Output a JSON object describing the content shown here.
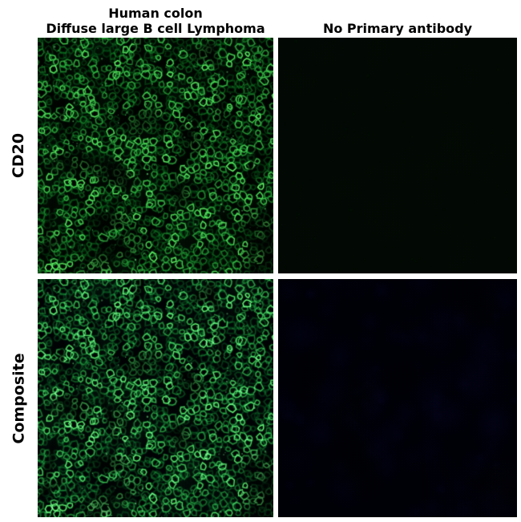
{
  "headers": {
    "left_line1": "Human colon",
    "left_line2": "Diffuse large B cell Lymphoma",
    "right": "No Primary antibody"
  },
  "row_labels": {
    "top": "CD20",
    "bottom": "Composite"
  },
  "colors": {
    "figure_background": "#ffffff",
    "text": "#000000",
    "panel_background": "#000300",
    "green_channel": "#1ed455",
    "green_bright": "#7aff8c",
    "blue_channel": "#2b2fe0",
    "blue_bright": "#5a64ff",
    "no_primary_tint": "#020803"
  },
  "panels": [
    {
      "id": "cd20-stained",
      "row": "CD20",
      "column": "stained",
      "kind": "membranes",
      "seed": 101
    },
    {
      "id": "cd20-no-primary",
      "row": "CD20",
      "column": "no-primary",
      "kind": "blank",
      "seed": 77
    },
    {
      "id": "composite-stained",
      "row": "Composite",
      "column": "stained",
      "kind": "membranes-nuclei",
      "seed": 101,
      "nuclei_seed": 202,
      "nuclei_count": 500
    },
    {
      "id": "composite-no-primary",
      "row": "Composite",
      "column": "no-primary",
      "kind": "nuclei",
      "seed": 303,
      "nuclei_count": 1000
    }
  ]
}
